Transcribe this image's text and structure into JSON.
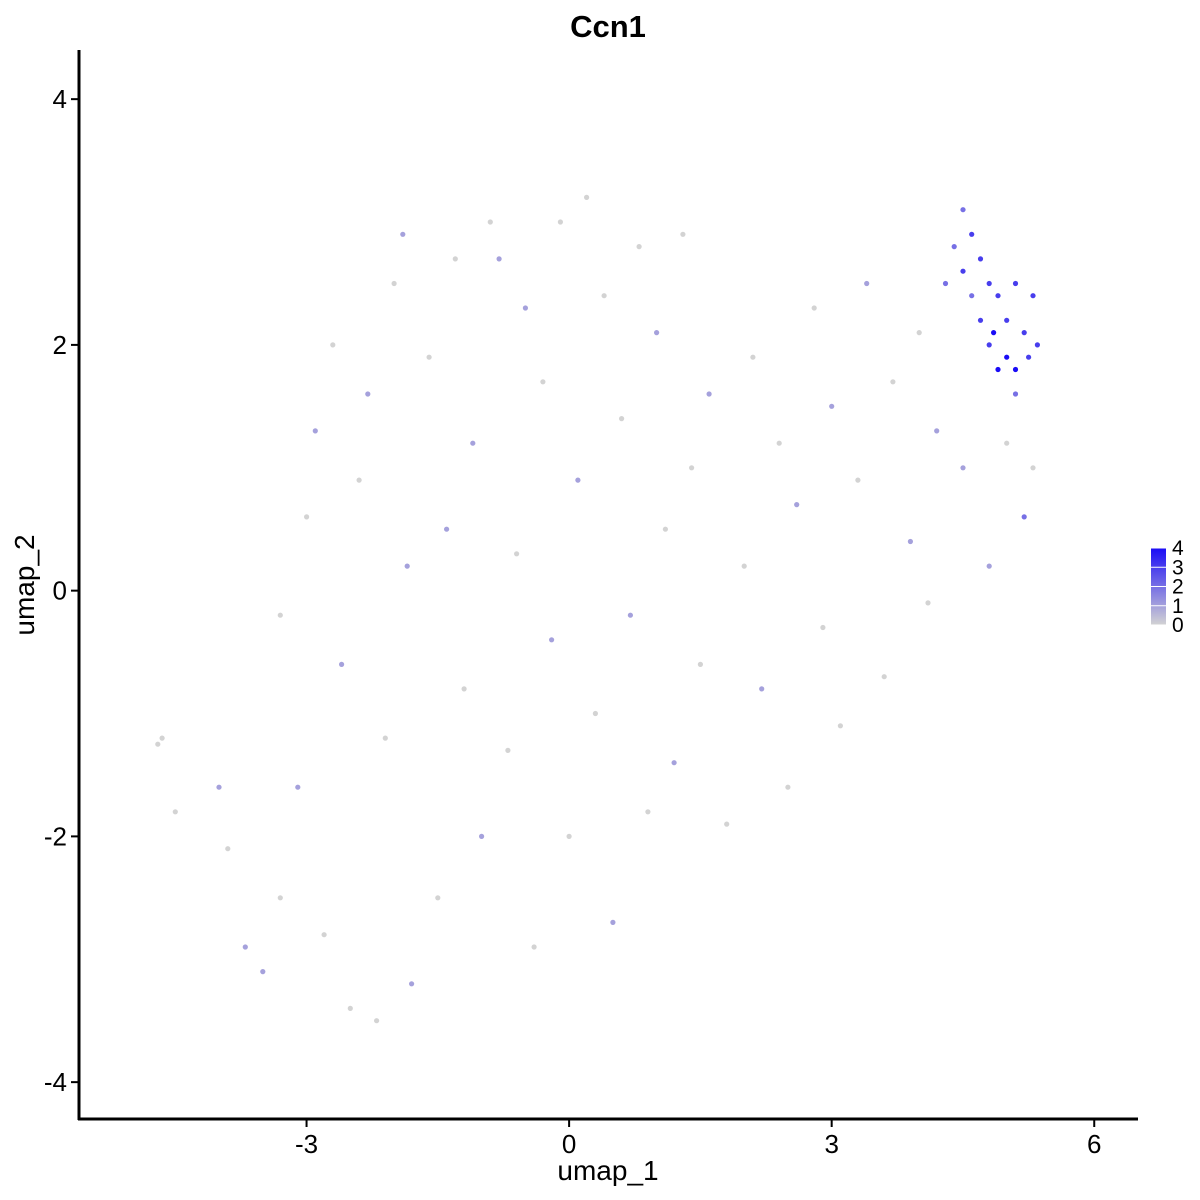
{
  "chart_data": {
    "type": "scatter",
    "title": "Ccn1",
    "xlabel": "umap_1",
    "ylabel": "umap_2",
    "xlim": [
      -5.6,
      6.5
    ],
    "ylim": [
      -4.3,
      4.4
    ],
    "x_ticks": [
      -3,
      0,
      3,
      6
    ],
    "x_tick_labels": [
      "-3",
      "0",
      "3",
      "6"
    ],
    "y_ticks": [
      -4,
      -2,
      0,
      2,
      4
    ],
    "y_tick_labels": [
      "-4",
      "-2",
      "0",
      "2",
      "4"
    ],
    "grid": false,
    "legend": {
      "placement": "right",
      "min": 0,
      "max": 4,
      "ticks": [
        0,
        1,
        2,
        3,
        4
      ],
      "tick_labels": [
        "0",
        "1",
        "2",
        "3",
        "4"
      ],
      "low_color": "#d3d3d3",
      "high_color": "#1a0cf6"
    },
    "point_color_low": "#d3d3d3",
    "point_color_high": "#1a0cf6",
    "points": [
      {
        "x": -4.7,
        "y": -1.25,
        "v": 0
      },
      {
        "x": -4.65,
        "y": -1.2,
        "v": 0
      },
      {
        "x": -4.5,
        "y": -1.8,
        "v": 0
      },
      {
        "x": -4.0,
        "y": -1.6,
        "v": 1
      },
      {
        "x": -3.9,
        "y": -2.1,
        "v": 0
      },
      {
        "x": -3.7,
        "y": -2.9,
        "v": 1
      },
      {
        "x": -3.5,
        "y": -3.1,
        "v": 1
      },
      {
        "x": -3.3,
        "y": -2.5,
        "v": 0
      },
      {
        "x": -3.3,
        "y": -0.2,
        "v": 0
      },
      {
        "x": -3.1,
        "y": -1.6,
        "v": 1
      },
      {
        "x": -3.0,
        "y": 0.6,
        "v": 0
      },
      {
        "x": -2.9,
        "y": 1.3,
        "v": 1
      },
      {
        "x": -2.8,
        "y": -2.8,
        "v": 0
      },
      {
        "x": -2.7,
        "y": 2.0,
        "v": 0
      },
      {
        "x": -2.6,
        "y": -0.6,
        "v": 1
      },
      {
        "x": -2.5,
        "y": -3.4,
        "v": 0
      },
      {
        "x": -2.4,
        "y": 0.9,
        "v": 0
      },
      {
        "x": -2.3,
        "y": 1.6,
        "v": 1
      },
      {
        "x": -2.2,
        "y": -3.5,
        "v": 0
      },
      {
        "x": -2.1,
        "y": -1.2,
        "v": 0
      },
      {
        "x": -2.0,
        "y": 2.5,
        "v": 0
      },
      {
        "x": -1.9,
        "y": 2.9,
        "v": 1
      },
      {
        "x": -1.85,
        "y": 0.2,
        "v": 1
      },
      {
        "x": -1.8,
        "y": -3.2,
        "v": 1
      },
      {
        "x": -1.6,
        "y": 1.9,
        "v": 0
      },
      {
        "x": -1.5,
        "y": -2.5,
        "v": 0
      },
      {
        "x": -1.4,
        "y": 0.5,
        "v": 1
      },
      {
        "x": -1.3,
        "y": 2.7,
        "v": 0
      },
      {
        "x": -1.2,
        "y": -0.8,
        "v": 0
      },
      {
        "x": -1.1,
        "y": 1.2,
        "v": 1
      },
      {
        "x": -1.0,
        "y": -2.0,
        "v": 1
      },
      {
        "x": -0.9,
        "y": 3.0,
        "v": 0
      },
      {
        "x": -0.8,
        "y": 2.7,
        "v": 1
      },
      {
        "x": -0.7,
        "y": -1.3,
        "v": 0
      },
      {
        "x": -0.6,
        "y": 0.3,
        "v": 0
      },
      {
        "x": -0.5,
        "y": 2.3,
        "v": 1
      },
      {
        "x": -0.4,
        "y": -2.9,
        "v": 0
      },
      {
        "x": -0.3,
        "y": 1.7,
        "v": 0
      },
      {
        "x": -0.2,
        "y": -0.4,
        "v": 1
      },
      {
        "x": -0.1,
        "y": 3.0,
        "v": 0
      },
      {
        "x": 0.0,
        "y": -2.0,
        "v": 0
      },
      {
        "x": 0.1,
        "y": 0.9,
        "v": 1
      },
      {
        "x": 0.2,
        "y": 3.2,
        "v": 0
      },
      {
        "x": 0.3,
        "y": -1.0,
        "v": 0
      },
      {
        "x": 0.4,
        "y": 2.4,
        "v": 0
      },
      {
        "x": 0.5,
        "y": -2.7,
        "v": 1
      },
      {
        "x": 0.6,
        "y": 1.4,
        "v": 0
      },
      {
        "x": 0.7,
        "y": -0.2,
        "v": 1
      },
      {
        "x": 0.8,
        "y": 2.8,
        "v": 0
      },
      {
        "x": 0.9,
        "y": -1.8,
        "v": 0
      },
      {
        "x": 1.0,
        "y": 2.1,
        "v": 1
      },
      {
        "x": 1.1,
        "y": 0.5,
        "v": 0
      },
      {
        "x": 1.2,
        "y": -1.4,
        "v": 1
      },
      {
        "x": 1.3,
        "y": 2.9,
        "v": 0
      },
      {
        "x": 1.4,
        "y": 1.0,
        "v": 0
      },
      {
        "x": 1.5,
        "y": -0.6,
        "v": 0
      },
      {
        "x": 1.6,
        "y": 1.6,
        "v": 1
      },
      {
        "x": 1.8,
        "y": -1.9,
        "v": 0
      },
      {
        "x": 2.0,
        "y": 0.2,
        "v": 0
      },
      {
        "x": 2.1,
        "y": 1.9,
        "v": 0
      },
      {
        "x": 2.2,
        "y": -0.8,
        "v": 1
      },
      {
        "x": 2.4,
        "y": 1.2,
        "v": 0
      },
      {
        "x": 2.5,
        "y": -1.6,
        "v": 0
      },
      {
        "x": 2.6,
        "y": 0.7,
        "v": 1
      },
      {
        "x": 2.8,
        "y": 2.3,
        "v": 0
      },
      {
        "x": 2.9,
        "y": -0.3,
        "v": 0
      },
      {
        "x": 3.0,
        "y": 1.5,
        "v": 1
      },
      {
        "x": 3.1,
        "y": -1.1,
        "v": 0
      },
      {
        "x": 3.3,
        "y": 0.9,
        "v": 0
      },
      {
        "x": 3.4,
        "y": 2.5,
        "v": 1
      },
      {
        "x": 3.6,
        "y": -0.7,
        "v": 0
      },
      {
        "x": 3.7,
        "y": 1.7,
        "v": 0
      },
      {
        "x": 3.9,
        "y": 0.4,
        "v": 1
      },
      {
        "x": 4.0,
        "y": 2.1,
        "v": 0
      },
      {
        "x": 4.1,
        "y": -0.1,
        "v": 0
      },
      {
        "x": 4.2,
        "y": 1.3,
        "v": 1
      },
      {
        "x": 4.3,
        "y": 2.5,
        "v": 2
      },
      {
        "x": 4.4,
        "y": 2.8,
        "v": 2
      },
      {
        "x": 4.5,
        "y": 3.1,
        "v": 2
      },
      {
        "x": 4.5,
        "y": 2.6,
        "v": 3
      },
      {
        "x": 4.6,
        "y": 2.9,
        "v": 3
      },
      {
        "x": 4.6,
        "y": 2.4,
        "v": 2
      },
      {
        "x": 4.7,
        "y": 2.7,
        "v": 3
      },
      {
        "x": 4.7,
        "y": 2.2,
        "v": 3
      },
      {
        "x": 4.8,
        "y": 2.5,
        "v": 3
      },
      {
        "x": 4.8,
        "y": 2.0,
        "v": 3
      },
      {
        "x": 4.85,
        "y": 2.1,
        "v": 4
      },
      {
        "x": 4.9,
        "y": 1.8,
        "v": 4
      },
      {
        "x": 4.9,
        "y": 2.4,
        "v": 3
      },
      {
        "x": 5.0,
        "y": 2.2,
        "v": 3
      },
      {
        "x": 5.0,
        "y": 1.9,
        "v": 4
      },
      {
        "x": 5.1,
        "y": 1.8,
        "v": 4
      },
      {
        "x": 5.1,
        "y": 2.5,
        "v": 3
      },
      {
        "x": 5.2,
        "y": 2.1,
        "v": 3
      },
      {
        "x": 5.25,
        "y": 1.9,
        "v": 3
      },
      {
        "x": 5.3,
        "y": 2.4,
        "v": 3
      },
      {
        "x": 5.35,
        "y": 2.0,
        "v": 3
      },
      {
        "x": 5.1,
        "y": 1.6,
        "v": 2
      },
      {
        "x": 5.2,
        "y": 0.6,
        "v": 2
      },
      {
        "x": 5.3,
        "y": 1.0,
        "v": 0
      },
      {
        "x": 5.0,
        "y": 1.2,
        "v": 0
      },
      {
        "x": 4.8,
        "y": 0.2,
        "v": 1
      },
      {
        "x": 4.5,
        "y": 1.0,
        "v": 1
      }
    ]
  }
}
